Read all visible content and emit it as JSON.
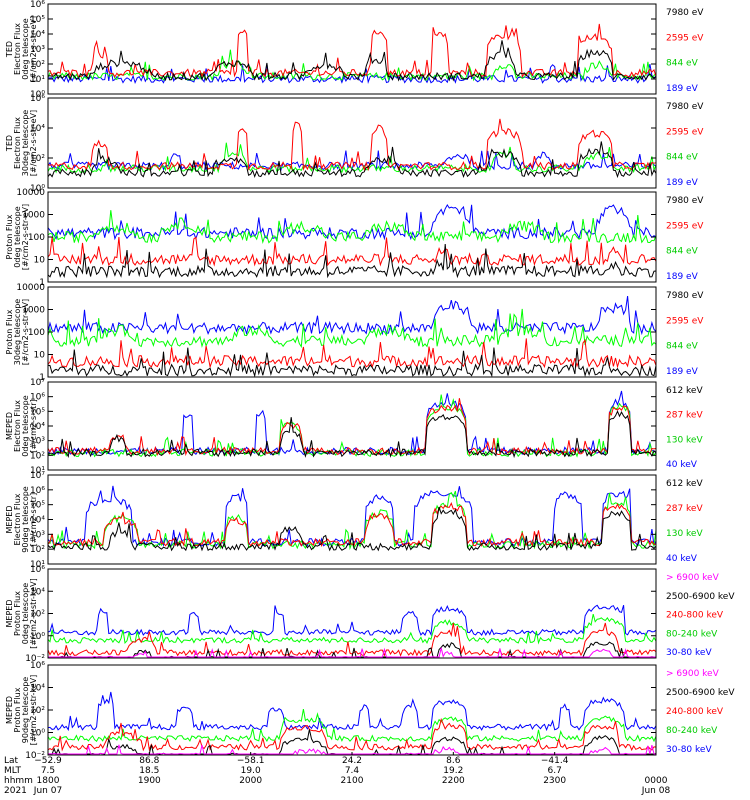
{
  "chart_data": [
    {
      "type": "line",
      "ylabel": [
        "TED",
        "Electron Flux",
        "0deg telescope",
        "[#/cm2-s-str-eV]"
      ],
      "yscale": "log",
      "ylim": [
        1,
        1000000
      ],
      "yticks": [
        "10⁰",
        "10¹",
        "10²",
        "10³",
        "10⁴",
        "10⁵",
        "10⁶"
      ],
      "series": [
        {
          "name": "7980 eV",
          "color": "#000000",
          "baseline": 15,
          "bursts": [
            [
              0.07,
              0.17,
              8
            ],
            [
              0.27,
              0.34,
              8
            ],
            [
              0.42,
              0.49,
              6
            ],
            [
              0.52,
              0.56,
              12
            ],
            [
              0.72,
              0.77,
              30
            ],
            [
              0.87,
              0.93,
              40
            ]
          ]
        },
        {
          "name": "2595 eV",
          "color": "#ff0000",
          "baseline": 25,
          "bursts": [
            [
              0.07,
              0.1,
              20
            ],
            [
              0.31,
              0.33,
              600
            ],
            [
              0.53,
              0.56,
              600
            ],
            [
              0.63,
              0.66,
              400
            ],
            [
              0.72,
              0.78,
              300
            ],
            [
              0.87,
              0.93,
              250
            ]
          ]
        },
        {
          "name": "844 eV",
          "color": "#00ff00",
          "baseline": 15,
          "bursts": [
            [
              0.28,
              0.33,
              8
            ],
            [
              0.73,
              0.77,
              6
            ],
            [
              0.88,
              0.93,
              6
            ]
          ]
        },
        {
          "name": "189 eV",
          "color": "#0000ff",
          "baseline": 10,
          "bursts": []
        }
      ]
    },
    {
      "type": "line",
      "ylabel": [
        "TED",
        "Electron Flux",
        "30deg telescope",
        "[#/cm2-s-str-eV]"
      ],
      "yscale": "log",
      "ylim": [
        1,
        1000000
      ],
      "yticks": [
        "10⁰",
        "10²",
        "10⁴",
        "10⁶"
      ],
      "series": [
        {
          "name": "7980 eV",
          "color": "#000000",
          "baseline": 10,
          "bursts": [
            [
              0.07,
              0.12,
              8
            ],
            [
              0.27,
              0.33,
              10
            ],
            [
              0.52,
              0.58,
              8
            ],
            [
              0.72,
              0.78,
              20
            ],
            [
              0.87,
              0.93,
              30
            ]
          ]
        },
        {
          "name": "2595 eV",
          "color": "#ff0000",
          "baseline": 30,
          "bursts": [
            [
              0.07,
              0.1,
              30
            ],
            [
              0.31,
              0.33,
              400
            ],
            [
              0.4,
              0.42,
              600
            ],
            [
              0.53,
              0.56,
              300
            ],
            [
              0.72,
              0.78,
              200
            ],
            [
              0.87,
              0.93,
              150
            ]
          ]
        },
        {
          "name": "844 eV",
          "color": "#00ff00",
          "baseline": 20,
          "bursts": [
            [
              0.28,
              0.33,
              10
            ],
            [
              0.73,
              0.77,
              8
            ],
            [
              0.88,
              0.93,
              8
            ]
          ]
        },
        {
          "name": "189 eV",
          "color": "#0000ff",
          "baseline": 30,
          "bursts": [
            [
              0.2,
              0.22,
              5
            ],
            [
              0.65,
              0.7,
              5
            ],
            [
              0.8,
              0.83,
              5
            ]
          ]
        }
      ]
    },
    {
      "type": "line",
      "ylabel": [
        "Proton Flux",
        "0deg telescope",
        "[#/cm2-s-str-eV]"
      ],
      "yscale": "log",
      "ylim": [
        1,
        10000
      ],
      "yticks": [
        "1",
        "10",
        "100",
        "1000",
        "10000"
      ],
      "series": [
        {
          "name": "7980 eV",
          "color": "#000000",
          "baseline": 3,
          "bursts": [
            [
              0.63,
              0.66,
              2
            ],
            [
              0.92,
              0.94,
              2
            ]
          ]
        },
        {
          "name": "2595 eV",
          "color": "#ff0000",
          "baseline": 10,
          "bursts": [
            [
              0.64,
              0.66,
              3
            ],
            [
              0.92,
              0.94,
              3
            ]
          ]
        },
        {
          "name": "844 eV",
          "color": "#00ff00",
          "baseline": 100,
          "bursts": [
            [
              0.07,
              0.15,
              3
            ],
            [
              0.18,
              0.26,
              4
            ],
            [
              0.38,
              0.46,
              3
            ],
            [
              0.52,
              0.6,
              3
            ],
            [
              0.74,
              0.82,
              3
            ]
          ]
        },
        {
          "name": "189 eV",
          "color": "#0000ff",
          "baseline": 150,
          "bursts": [
            [
              0.63,
              0.7,
              12
            ],
            [
              0.9,
              0.96,
              10
            ]
          ]
        }
      ]
    },
    {
      "type": "line",
      "ylabel": [
        "Proton Flux",
        "30deg telescope",
        "[#/cm2-s-str-eV]"
      ],
      "yscale": "log",
      "ylim": [
        1,
        10000
      ],
      "yticks": [
        "1",
        "10",
        "100",
        "1000",
        "10000"
      ],
      "series": [
        {
          "name": "7980 eV",
          "color": "#000000",
          "baseline": 2,
          "bursts": [
            [
              0.46,
              0.48,
              1
            ]
          ]
        },
        {
          "name": "2595 eV",
          "color": "#ff0000",
          "baseline": 5,
          "bursts": []
        },
        {
          "name": "844 eV",
          "color": "#00ff00",
          "baseline": 40,
          "bursts": [
            [
              0.08,
              0.15,
              3
            ],
            [
              0.3,
              0.37,
              3
            ],
            [
              0.52,
              0.6,
              3
            ],
            [
              0.74,
              0.82,
              3
            ]
          ]
        },
        {
          "name": "189 eV",
          "color": "#0000ff",
          "baseline": 150,
          "bursts": [
            [
              0.63,
              0.7,
              10
            ],
            [
              0.9,
              0.96,
              8
            ]
          ]
        }
      ]
    },
    {
      "type": "line",
      "ylabel": [
        "MEPED",
        "Electron Flux",
        "0deg telescope",
        "[#/cm2-s-str]"
      ],
      "yscale": "log",
      "ylim": [
        10,
        10000000
      ],
      "yticks": [
        "10¹",
        "10²",
        "10³",
        "10⁴",
        "10⁵",
        "10⁶",
        "10⁷"
      ],
      "series": [
        {
          "name": "612 keV",
          "color": "#000000",
          "baseline": 150,
          "bursts": [
            [
              0.1,
              0.13,
              10
            ],
            [
              0.38,
              0.42,
              30
            ],
            [
              0.62,
              0.69,
              300
            ],
            [
              0.92,
              0.96,
              400
            ]
          ]
        },
        {
          "name": "287 keV",
          "color": "#ff0000",
          "baseline": 200,
          "bursts": [
            [
              0.1,
              0.13,
              10
            ],
            [
              0.38,
              0.42,
              60
            ],
            [
              0.62,
              0.69,
              1000
            ],
            [
              0.92,
              0.96,
              1000
            ]
          ]
        },
        {
          "name": "130 keV",
          "color": "#00ff00",
          "baseline": 150,
          "bursts": [
            [
              0.38,
              0.42,
              80
            ],
            [
              0.62,
              0.69,
              1200
            ],
            [
              0.92,
              0.96,
              1500
            ]
          ]
        },
        {
          "name": "40 keV",
          "color": "#0000ff",
          "baseline": 200,
          "bursts": [
            [
              0.22,
              0.24,
              300
            ],
            [
              0.34,
              0.36,
              400
            ],
            [
              0.62,
              0.69,
              2000
            ],
            [
              0.92,
              0.96,
              2500
            ]
          ]
        }
      ]
    },
    {
      "type": "line",
      "ylabel": [
        "MEPED",
        "Electron Flux",
        "90deg telescope",
        "[#/cm2-s-str]"
      ],
      "yscale": "log",
      "ylim": [
        10,
        10000000
      ],
      "yticks": [
        "10¹",
        "10²",
        "10³",
        "10⁴",
        "10⁵",
        "10⁶",
        "10⁷"
      ],
      "series": [
        {
          "name": "612 keV",
          "color": "#000000",
          "baseline": 150,
          "bursts": [
            [
              0.1,
              0.14,
              10
            ],
            [
              0.38,
              0.42,
              20
            ],
            [
              0.63,
              0.69,
              200
            ],
            [
              0.91,
              0.96,
              200
            ]
          ]
        },
        {
          "name": "287 keV",
          "color": "#ff0000",
          "baseline": 300,
          "bursts": [
            [
              0.09,
              0.15,
              30
            ],
            [
              0.29,
              0.33,
              30
            ],
            [
              0.52,
              0.57,
              60
            ],
            [
              0.63,
              0.69,
              300
            ],
            [
              0.91,
              0.96,
              300
            ]
          ]
        },
        {
          "name": "130 keV",
          "color": "#00ff00",
          "baseline": 200,
          "bursts": [
            [
              0.09,
              0.15,
              60
            ],
            [
              0.29,
              0.33,
              80
            ],
            [
              0.52,
              0.57,
              150
            ],
            [
              0.63,
              0.69,
              500
            ],
            [
              0.91,
              0.96,
              500
            ]
          ]
        },
        {
          "name": "40 keV",
          "color": "#0000ff",
          "baseline": 300,
          "bursts": [
            [
              0.06,
              0.14,
              800
            ],
            [
              0.29,
              0.33,
              1000
            ],
            [
              0.52,
              0.57,
              900
            ],
            [
              0.6,
              0.7,
              2000
            ],
            [
              0.83,
              0.88,
              1500
            ],
            [
              0.91,
              0.96,
              2000
            ]
          ]
        }
      ]
    },
    {
      "type": "line",
      "ylabel": [
        "MEPED",
        "Proton Flux",
        "0deg telescope",
        "[#/cm2-s-str-keV]"
      ],
      "yscale": "log",
      "ylim": [
        0.01,
        1000000
      ],
      "yticks": [
        "10⁻²",
        "10⁰",
        "10²",
        "10⁴",
        "10⁶"
      ],
      "series": [
        {
          "name": "> 6900 keV",
          "color": "#ff00ff",
          "baseline": 0.008,
          "bursts": [
            [
              0.14,
              0.17,
              3
            ],
            [
              0.65,
              0.67,
              4
            ],
            [
              0.89,
              0.93,
              5
            ]
          ]
        },
        {
          "name": "2500-6900 keV",
          "color": "#000000",
          "baseline": 0.008,
          "bursts": [
            [
              0.14,
              0.17,
              6
            ],
            [
              0.64,
              0.68,
              20
            ],
            [
              0.88,
              0.94,
              25
            ]
          ]
        },
        {
          "name": "240-800 keV",
          "color": "#ff0000",
          "baseline": 0.03,
          "bursts": [
            [
              0.13,
              0.18,
              15
            ],
            [
              0.63,
              0.68,
              60
            ],
            [
              0.88,
              0.94,
              80
            ]
          ]
        },
        {
          "name": "80-240 keV",
          "color": "#00ff00",
          "baseline": 0.4,
          "bursts": [
            [
              0.63,
              0.69,
              40
            ],
            [
              0.88,
              0.95,
              60
            ]
          ]
        },
        {
          "name": "30-80 keV",
          "color": "#0000ff",
          "baseline": 2,
          "bursts": [
            [
              0.08,
              0.1,
              100
            ],
            [
              0.23,
              0.25,
              60
            ],
            [
              0.37,
              0.39,
              50
            ],
            [
              0.58,
              0.61,
              70
            ],
            [
              0.63,
              0.69,
              150
            ],
            [
              0.88,
              0.95,
              200
            ]
          ]
        }
      ]
    },
    {
      "type": "line",
      "ylabel": [
        "MEPED",
        "Proton Flux",
        "90deg telescope",
        "[#/cm2-s-str-keV]"
      ],
      "yscale": "log",
      "ylim": [
        0.01,
        1000000
      ],
      "yticks": [
        "10⁻²",
        "10⁰",
        "10²",
        "10⁴",
        "10⁶"
      ],
      "series": [
        {
          "name": "> 6900 keV",
          "color": "#ff00ff",
          "baseline": 0.008,
          "bursts": [
            [
              0.4,
              0.46,
              3
            ],
            [
              0.63,
              0.68,
              4
            ],
            [
              0.89,
              0.93,
              4
            ]
          ]
        },
        {
          "name": "2500-6900 keV",
          "color": "#000000",
          "baseline": 0.008,
          "bursts": [
            [
              0.09,
              0.15,
              8
            ],
            [
              0.38,
              0.46,
              30
            ],
            [
              0.63,
              0.69,
              40
            ],
            [
              0.88,
              0.94,
              40
            ]
          ]
        },
        {
          "name": "240-800 keV",
          "color": "#ff0000",
          "baseline": 0.05,
          "bursts": [
            [
              0.09,
              0.15,
              15
            ],
            [
              0.38,
              0.46,
              60
            ],
            [
              0.63,
              0.69,
              80
            ],
            [
              0.88,
              0.94,
              80
            ]
          ]
        },
        {
          "name": "80-240 keV",
          "color": "#00ff00",
          "baseline": 0.3,
          "bursts": [
            [
              0.38,
              0.46,
              50
            ],
            [
              0.63,
              0.69,
              60
            ],
            [
              0.88,
              0.95,
              60
            ]
          ]
        },
        {
          "name": "30-80 keV",
          "color": "#0000ff",
          "baseline": 3,
          "bursts": [
            [
              0.08,
              0.11,
              200
            ],
            [
              0.21,
              0.24,
              60
            ],
            [
              0.36,
              0.39,
              50
            ],
            [
              0.51,
              0.53,
              60
            ],
            [
              0.58,
              0.61,
              70
            ],
            [
              0.63,
              0.69,
              200
            ],
            [
              0.84,
              0.86,
              60
            ],
            [
              0.88,
              0.95,
              250
            ]
          ]
        }
      ]
    }
  ],
  "x_axis": {
    "row_labels": [
      "Lat",
      "MLT",
      "hhmm",
      "2021"
    ],
    "columns": [
      {
        "lat": "−52.9",
        "mlt": "7.5",
        "hhmm": "1800",
        "date": "Jun 07"
      },
      {
        "lat": "86.8",
        "mlt": "18.5",
        "hhmm": "1900",
        "date": ""
      },
      {
        "lat": "−58.1",
        "mlt": "19.0",
        "hhmm": "2000",
        "date": ""
      },
      {
        "lat": "24.2",
        "mlt": "7.4",
        "hhmm": "2100",
        "date": ""
      },
      {
        "lat": "8.6",
        "mlt": "19.2",
        "hhmm": "2200",
        "date": ""
      },
      {
        "lat": "−41.4",
        "mlt": "6.7",
        "hhmm": "2300",
        "date": ""
      },
      {
        "lat": "",
        "mlt": "",
        "hhmm": "0000",
        "date": "Jun 08"
      }
    ]
  }
}
